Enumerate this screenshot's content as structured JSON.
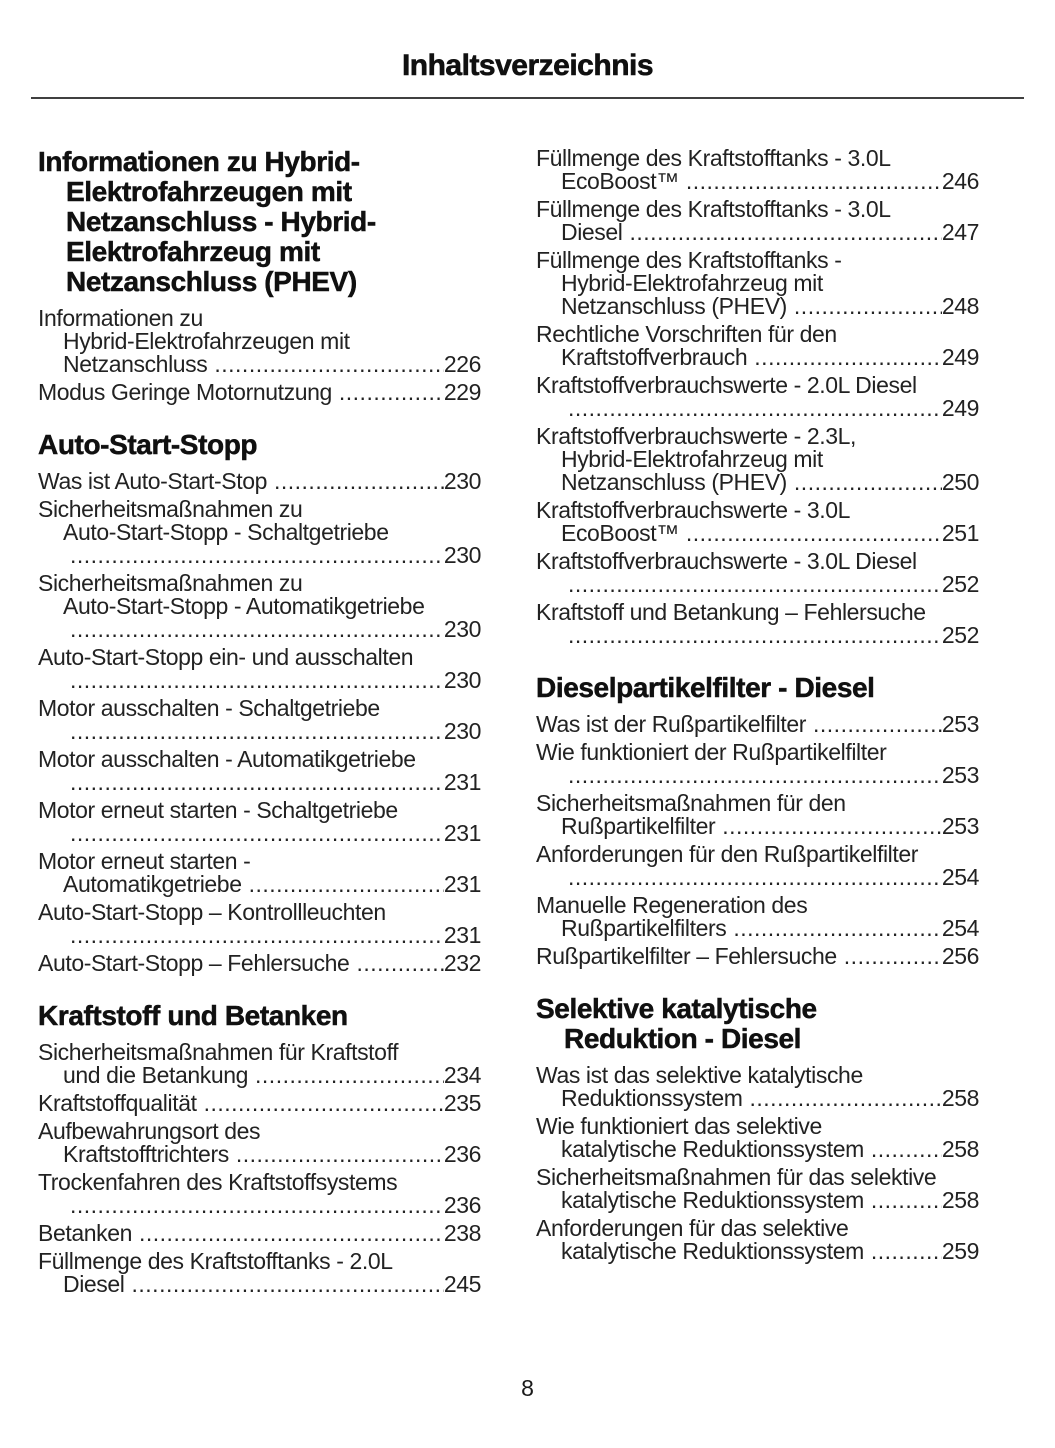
{
  "page": {
    "title": "Inhaltsverzeichnis",
    "page_number": "8"
  },
  "columns": [
    {
      "blocks": [
        {
          "type": "heading",
          "lines": [
            {
              "text": "Informationen zu Hybrid-"
            },
            {
              "text": "Elektrofahrzeugen mit",
              "indent": true
            },
            {
              "text": "Netzanschluss - Hybrid-",
              "indent": true
            },
            {
              "text": "Elektrofahrzeug mit",
              "indent": true
            },
            {
              "text": "Netzanschluss (PHEV)",
              "indent": true
            }
          ]
        },
        {
          "type": "entry",
          "lines": [
            {
              "text": "Informationen zu"
            },
            {
              "text": "Hybrid-Elektrofahrzeugen mit",
              "indent": true
            },
            {
              "text": "Netzanschluss",
              "indent": true,
              "page": "226"
            }
          ]
        },
        {
          "type": "entry",
          "lines": [
            {
              "text": "Modus Geringe Motornutzung",
              "page": "229"
            }
          ]
        },
        {
          "type": "heading",
          "lines": [
            {
              "text": "Auto-Start-Stopp"
            }
          ]
        },
        {
          "type": "entry",
          "lines": [
            {
              "text": "Was ist Auto-Start-Stop",
              "page": "230"
            }
          ]
        },
        {
          "type": "entry",
          "lines": [
            {
              "text": "Sicherheitsmaßnahmen zu"
            },
            {
              "text": "Auto-Start-Stopp - Schaltgetriebe",
              "indent": true
            },
            {
              "text": "",
              "indent": true,
              "page": "230"
            }
          ]
        },
        {
          "type": "entry",
          "lines": [
            {
              "text": "Sicherheitsmaßnahmen zu"
            },
            {
              "text": "Auto-Start-Stopp - Automatikgetriebe",
              "indent": true
            },
            {
              "text": "",
              "indent": true,
              "page": "230"
            }
          ]
        },
        {
          "type": "entry",
          "lines": [
            {
              "text": "Auto-Start-Stopp ein- und ausschalten"
            },
            {
              "text": "",
              "indent": true,
              "page": "230"
            }
          ]
        },
        {
          "type": "entry",
          "lines": [
            {
              "text": "Motor ausschalten - Schaltgetriebe"
            },
            {
              "text": "",
              "indent": true,
              "page": "230"
            }
          ]
        },
        {
          "type": "entry",
          "lines": [
            {
              "text": "Motor ausschalten - Automatikgetriebe"
            },
            {
              "text": "",
              "indent": true,
              "page": "231"
            }
          ]
        },
        {
          "type": "entry",
          "lines": [
            {
              "text": "Motor erneut starten - Schaltgetriebe"
            },
            {
              "text": "",
              "indent": true,
              "page": "231"
            }
          ]
        },
        {
          "type": "entry",
          "lines": [
            {
              "text": "Motor erneut starten -"
            },
            {
              "text": "Automatikgetriebe",
              "indent": true,
              "page": "231"
            }
          ]
        },
        {
          "type": "entry",
          "lines": [
            {
              "text": "Auto-Start-Stopp – Kontrollleuchten"
            },
            {
              "text": "",
              "indent": true,
              "page": "231"
            }
          ]
        },
        {
          "type": "entry",
          "lines": [
            {
              "text": "Auto-Start-Stopp – Fehlersuche",
              "page": "232"
            }
          ]
        },
        {
          "type": "heading",
          "lines": [
            {
              "text": "Kraftstoff und Betanken"
            }
          ]
        },
        {
          "type": "entry",
          "lines": [
            {
              "text": "Sicherheitsmaßnahmen für Kraftstoff"
            },
            {
              "text": "und die Betankung",
              "indent": true,
              "page": "234"
            }
          ]
        },
        {
          "type": "entry",
          "lines": [
            {
              "text": "Kraftstoffqualität",
              "page": "235"
            }
          ]
        },
        {
          "type": "entry",
          "lines": [
            {
              "text": "Aufbewahrungsort des"
            },
            {
              "text": "Kraftstofftrichters",
              "indent": true,
              "page": "236"
            }
          ]
        },
        {
          "type": "entry",
          "lines": [
            {
              "text": "Trockenfahren des Kraftstoffsystems"
            },
            {
              "text": "",
              "indent": true,
              "page": "236"
            }
          ]
        },
        {
          "type": "entry",
          "lines": [
            {
              "text": "Betanken",
              "page": "238"
            }
          ]
        },
        {
          "type": "entry",
          "lines": [
            {
              "text": "Füllmenge des Kraftstofftanks - 2.0L"
            },
            {
              "text": "Diesel",
              "indent": true,
              "page": "245"
            }
          ]
        }
      ]
    },
    {
      "blocks": [
        {
          "type": "entry",
          "lines": [
            {
              "text": "Füllmenge des Kraftstofftanks - 3.0L"
            },
            {
              "text": "EcoBoost™",
              "indent": true,
              "page": "246"
            }
          ]
        },
        {
          "type": "entry",
          "lines": [
            {
              "text": "Füllmenge des Kraftstofftanks - 3.0L"
            },
            {
              "text": "Diesel",
              "indent": true,
              "page": "247"
            }
          ]
        },
        {
          "type": "entry",
          "lines": [
            {
              "text": "Füllmenge des Kraftstofftanks -"
            },
            {
              "text": "Hybrid-Elektrofahrzeug mit",
              "indent": true
            },
            {
              "text": "Netzanschluss (PHEV)",
              "indent": true,
              "page": "248"
            }
          ]
        },
        {
          "type": "entry",
          "lines": [
            {
              "text": "Rechtliche Vorschriften für den"
            },
            {
              "text": "Kraftstoffverbrauch",
              "indent": true,
              "page": "249"
            }
          ]
        },
        {
          "type": "entry",
          "lines": [
            {
              "text": "Kraftstoffverbrauchswerte - 2.0L Diesel"
            },
            {
              "text": "",
              "indent": true,
              "page": "249"
            }
          ]
        },
        {
          "type": "entry",
          "lines": [
            {
              "text": "Kraftstoffverbrauchswerte - 2.3L,"
            },
            {
              "text": "Hybrid-Elektrofahrzeug mit",
              "indent": true
            },
            {
              "text": "Netzanschluss (PHEV)",
              "indent": true,
              "page": "250"
            }
          ]
        },
        {
          "type": "entry",
          "lines": [
            {
              "text": "Kraftstoffverbrauchswerte - 3.0L"
            },
            {
              "text": "EcoBoost™",
              "indent": true,
              "page": "251"
            }
          ]
        },
        {
          "type": "entry",
          "lines": [
            {
              "text": "Kraftstoffverbrauchswerte - 3.0L Diesel"
            },
            {
              "text": "",
              "indent": true,
              "page": "252"
            }
          ]
        },
        {
          "type": "entry",
          "lines": [
            {
              "text": "Kraftstoff und Betankung – Fehlersuche"
            },
            {
              "text": "",
              "indent": true,
              "page": "252"
            }
          ]
        },
        {
          "type": "heading",
          "lines": [
            {
              "text": "Dieselpartikelfilter - Diesel"
            }
          ]
        },
        {
          "type": "entry",
          "lines": [
            {
              "text": "Was ist der Rußpartikelfilter",
              "page": "253"
            }
          ]
        },
        {
          "type": "entry",
          "lines": [
            {
              "text": "Wie funktioniert der Rußpartikelfilter"
            },
            {
              "text": "",
              "indent": true,
              "page": "253"
            }
          ]
        },
        {
          "type": "entry",
          "lines": [
            {
              "text": "Sicherheitsmaßnahmen für den"
            },
            {
              "text": "Rußpartikelfilter",
              "indent": true,
              "page": "253"
            }
          ]
        },
        {
          "type": "entry",
          "lines": [
            {
              "text": "Anforderungen für den Rußpartikelfilter"
            },
            {
              "text": "",
              "indent": true,
              "page": "254"
            }
          ]
        },
        {
          "type": "entry",
          "lines": [
            {
              "text": "Manuelle Regeneration des"
            },
            {
              "text": "Rußpartikelfilters",
              "indent": true,
              "page": "254"
            }
          ]
        },
        {
          "type": "entry",
          "lines": [
            {
              "text": "Rußpartikelfilter – Fehlersuche",
              "page": "256"
            }
          ]
        },
        {
          "type": "heading",
          "lines": [
            {
              "text": "Selektive katalytische"
            },
            {
              "text": "Reduktion - Diesel",
              "indent": true
            }
          ]
        },
        {
          "type": "entry",
          "lines": [
            {
              "text": "Was ist das selektive katalytische"
            },
            {
              "text": "Reduktionssystem",
              "indent": true,
              "page": "258"
            }
          ]
        },
        {
          "type": "entry",
          "lines": [
            {
              "text": "Wie funktioniert das selektive"
            },
            {
              "text": "katalytische Reduktionssystem",
              "indent": true,
              "page": "258"
            }
          ]
        },
        {
          "type": "entry",
          "lines": [
            {
              "text": "Sicherheitsmaßnahmen für das selektive"
            },
            {
              "text": "katalytische Reduktionssystem",
              "indent": true,
              "page": "258"
            }
          ]
        },
        {
          "type": "entry",
          "lines": [
            {
              "text": "Anforderungen für das selektive"
            },
            {
              "text": "katalytische Reduktionssystem",
              "indent": true,
              "page": "259"
            }
          ]
        }
      ]
    }
  ]
}
